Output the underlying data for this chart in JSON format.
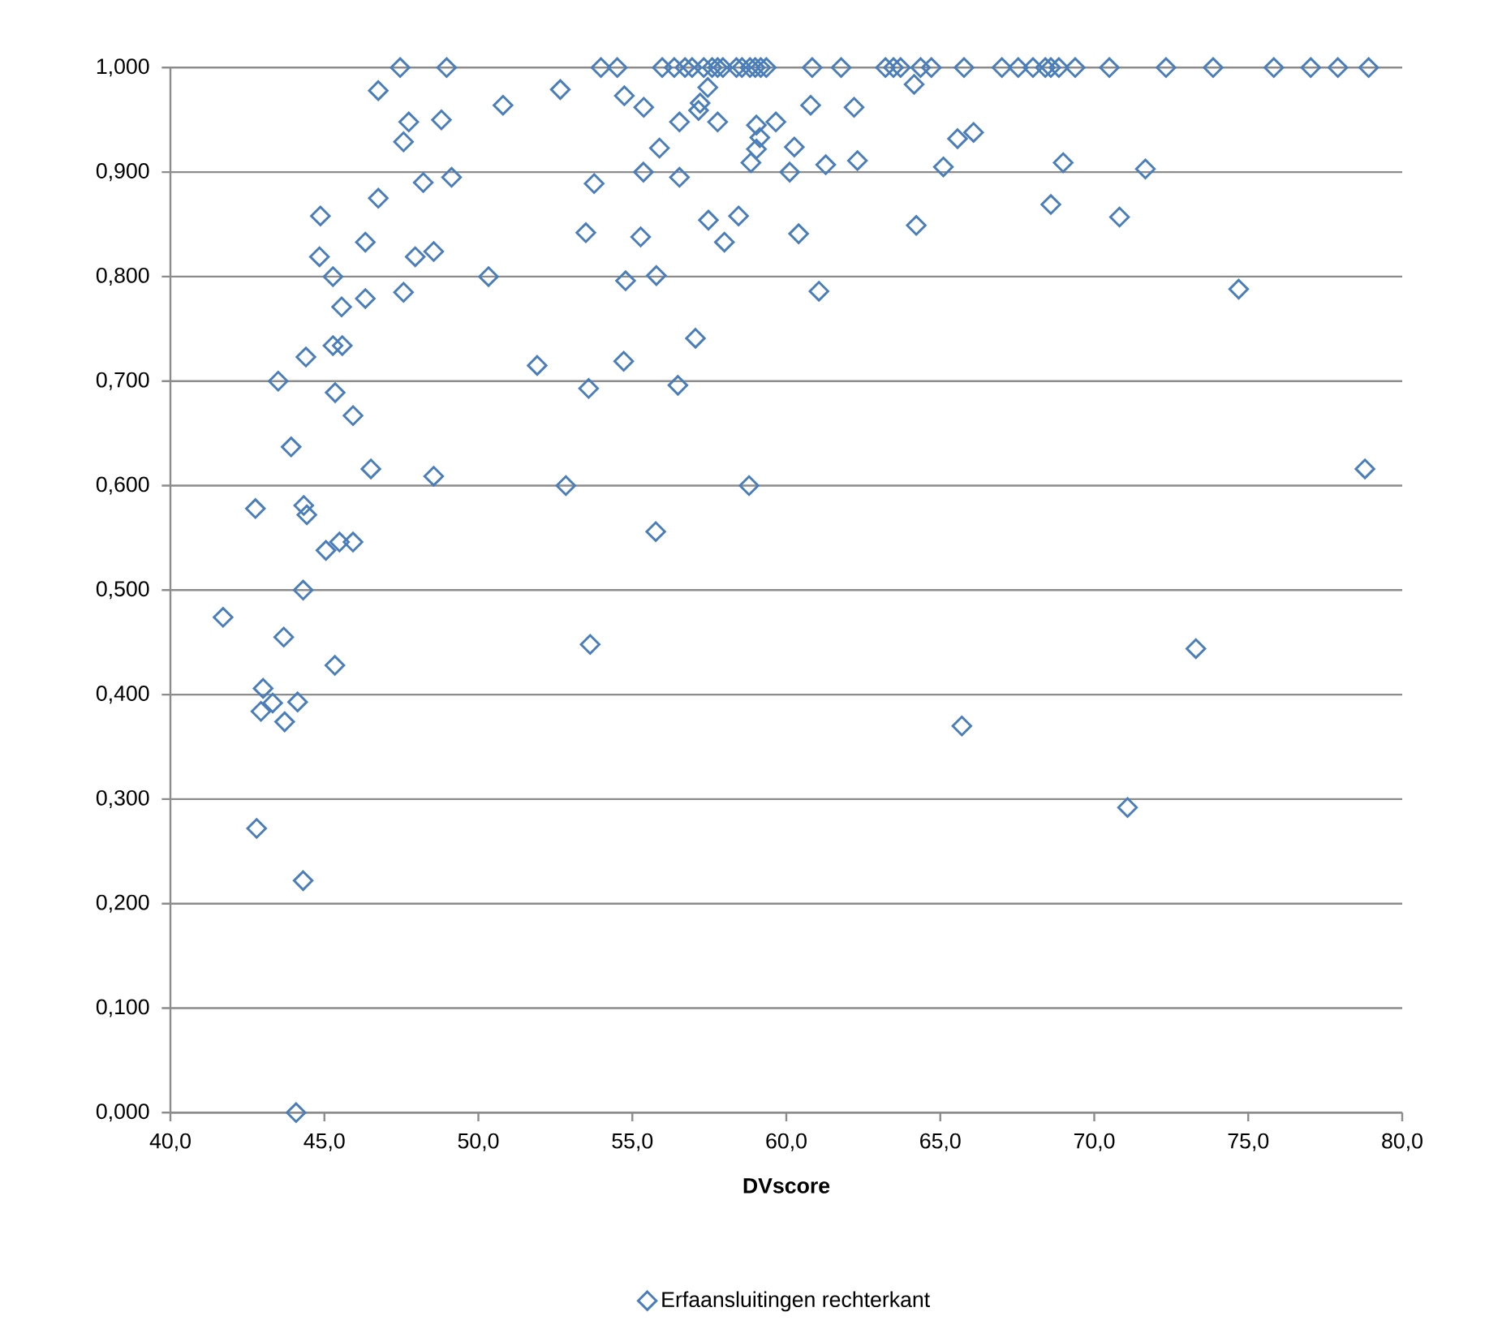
{
  "chart_data": {
    "type": "scatter",
    "xlabel": "DVscore",
    "legend": "bottom",
    "grid": "y",
    "marker": "diamond",
    "xlim": [
      40,
      80
    ],
    "ylim": [
      0,
      1
    ],
    "xticks": [
      {
        "value": 40,
        "label": "40,0"
      },
      {
        "value": 45,
        "label": "45,0"
      },
      {
        "value": 50,
        "label": "50,0"
      },
      {
        "value": 55,
        "label": "55,0"
      },
      {
        "value": 60,
        "label": "60,0"
      },
      {
        "value": 65,
        "label": "65,0"
      },
      {
        "value": 70,
        "label": "70,0"
      },
      {
        "value": 75,
        "label": "75,0"
      },
      {
        "value": 80,
        "label": "80,0"
      }
    ],
    "yticks": [
      {
        "value": 0,
        "label": "0,000"
      },
      {
        "value": 0.1,
        "label": "0,100"
      },
      {
        "value": 0.2,
        "label": "0,200"
      },
      {
        "value": 0.3,
        "label": "0,300"
      },
      {
        "value": 0.4,
        "label": "0,400"
      },
      {
        "value": 0.5,
        "label": "0,500"
      },
      {
        "value": 0.6,
        "label": "0,600"
      },
      {
        "value": 0.7,
        "label": "0,700"
      },
      {
        "value": 0.8,
        "label": "0,800"
      },
      {
        "value": 0.9,
        "label": "0,900"
      },
      {
        "value": 1,
        "label": "1,000"
      }
    ],
    "series": [
      {
        "name": "Erfaansluitingen rechterkant",
        "color": "#4a7ebb",
        "x": [
          47.46,
          48.97,
          46.75,
          50.8,
          47.74,
          48.8,
          47.57,
          48.21,
          49.13,
          46.75,
          44.87,
          46.33,
          44.84,
          47.95,
          48.55,
          45.28,
          50.33,
          47.57,
          46.33,
          45.56,
          45.28,
          45.58,
          44.4,
          51.91,
          43.5,
          45.35,
          45.93,
          43.92,
          46.51,
          48.55,
          42.76,
          44.33,
          44.43,
          45.05,
          45.49,
          45.93,
          44.31,
          41.71,
          43.68,
          45.34,
          43.01,
          42.94,
          43.32,
          44.13,
          43.71,
          42.8,
          44.31,
          44.08,
          53.98,
          54.51,
          55.97,
          56.36,
          56.71,
          56.94,
          57.32,
          57.59,
          57.77,
          57.94,
          58.38,
          58.56,
          58.82,
          58.99,
          59.17,
          59.35,
          60.84,
          61.78,
          63.22,
          63.48,
          63.71,
          64.36,
          64.71,
          65.77,
          67.0,
          67.53,
          68.01,
          68.41,
          68.59,
          68.85,
          69.38,
          70.49,
          72.33,
          73.86,
          75.83,
          77.03,
          77.91,
          78.91,
          52.66,
          54.74,
          55.37,
          57.45,
          57.2,
          57.15,
          56.53,
          57.77,
          59.03,
          59.66,
          59.14,
          59.03,
          58.85,
          60.26,
          60.11,
          60.79,
          62.2,
          55.88,
          55.36,
          56.53,
          53.76,
          61.28,
          62.31,
          64.15,
          65.56,
          66.08,
          65.1,
          53.49,
          55.27,
          57.47,
          58.45,
          57.99,
          60.4,
          64.22,
          54.78,
          55.78,
          61.06,
          57.05,
          54.72,
          53.58,
          56.48,
          52.84,
          58.79,
          55.76,
          65.7,
          71.08,
          73.3,
          78.79,
          53.63,
          68.99,
          71.66,
          68.59,
          70.82,
          74.69
        ],
        "values": [
          1.0,
          1.0,
          0.978,
          0.964,
          0.948,
          0.95,
          0.929,
          0.89,
          0.895,
          0.875,
          0.858,
          0.833,
          0.819,
          0.819,
          0.824,
          0.8,
          0.8,
          0.785,
          0.779,
          0.771,
          0.734,
          0.734,
          0.723,
          0.715,
          0.7,
          0.689,
          0.667,
          0.637,
          0.616,
          0.609,
          0.578,
          0.581,
          0.572,
          0.538,
          0.546,
          0.546,
          0.5,
          0.474,
          0.455,
          0.428,
          0.406,
          0.384,
          0.392,
          0.393,
          0.374,
          0.272,
          0.222,
          0.0,
          1.0,
          1.0,
          1.0,
          1.0,
          1.0,
          1.0,
          1.0,
          1.0,
          1.0,
          1.0,
          1.0,
          1.0,
          1.0,
          1.0,
          1.0,
          1.0,
          1.0,
          1.0,
          1.0,
          1.0,
          1.0,
          1.0,
          1.0,
          1.0,
          1.0,
          1.0,
          1.0,
          1.0,
          1.0,
          1.0,
          1.0,
          1.0,
          1.0,
          1.0,
          1.0,
          1.0,
          1.0,
          1.0,
          0.979,
          0.973,
          0.962,
          0.981,
          0.966,
          0.959,
          0.948,
          0.948,
          0.945,
          0.948,
          0.933,
          0.922,
          0.909,
          0.924,
          0.9,
          0.964,
          0.962,
          0.923,
          0.9,
          0.895,
          0.889,
          0.907,
          0.911,
          0.984,
          0.932,
          0.938,
          0.905,
          0.842,
          0.838,
          0.854,
          0.858,
          0.833,
          0.841,
          0.849,
          0.796,
          0.801,
          0.786,
          0.741,
          0.719,
          0.693,
          0.696,
          0.6,
          0.6,
          0.556,
          0.37,
          0.292,
          0.444,
          0.616,
          0.448,
          0.909,
          0.903,
          0.869,
          0.857,
          0.788
        ]
      }
    ]
  }
}
